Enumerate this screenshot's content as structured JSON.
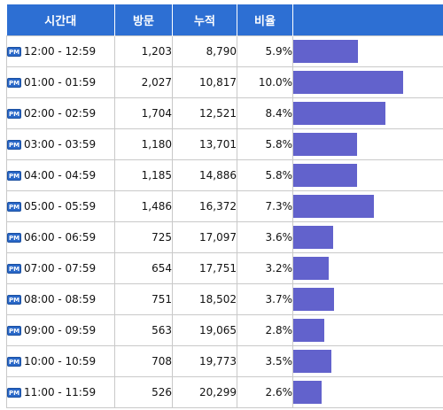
{
  "headers": [
    "시간대",
    "방문",
    "누적",
    "비율"
  ],
  "pm_badge": "PM",
  "bar_color": "#6262cc",
  "header_color": "#2d6fd3",
  "rows": [
    {
      "time": "12:00 - 12:59",
      "visits": "1,203",
      "cumulative": "8,790",
      "ratio": "5.9%",
      "ratio_value": 5.9
    },
    {
      "time": "01:00 - 01:59",
      "visits": "2,027",
      "cumulative": "10,817",
      "ratio": "10.0%",
      "ratio_value": 10.0
    },
    {
      "time": "02:00 - 02:59",
      "visits": "1,704",
      "cumulative": "12,521",
      "ratio": "8.4%",
      "ratio_value": 8.4
    },
    {
      "time": "03:00 - 03:59",
      "visits": "1,180",
      "cumulative": "13,701",
      "ratio": "5.8%",
      "ratio_value": 5.8
    },
    {
      "time": "04:00 - 04:59",
      "visits": "1,185",
      "cumulative": "14,886",
      "ratio": "5.8%",
      "ratio_value": 5.8
    },
    {
      "time": "05:00 - 05:59",
      "visits": "1,486",
      "cumulative": "16,372",
      "ratio": "7.3%",
      "ratio_value": 7.3
    },
    {
      "time": "06:00 - 06:59",
      "visits": "725",
      "cumulative": "17,097",
      "ratio": "3.6%",
      "ratio_value": 3.6
    },
    {
      "time": "07:00 - 07:59",
      "visits": "654",
      "cumulative": "17,751",
      "ratio": "3.2%",
      "ratio_value": 3.2
    },
    {
      "time": "08:00 - 08:59",
      "visits": "751",
      "cumulative": "18,502",
      "ratio": "3.7%",
      "ratio_value": 3.7
    },
    {
      "time": "09:00 - 09:59",
      "visits": "563",
      "cumulative": "19,065",
      "ratio": "2.8%",
      "ratio_value": 2.8
    },
    {
      "time": "10:00 - 10:59",
      "visits": "708",
      "cumulative": "19,773",
      "ratio": "3.5%",
      "ratio_value": 3.5
    },
    {
      "time": "11:00 - 11:59",
      "visits": "526",
      "cumulative": "20,299",
      "ratio": "2.6%",
      "ratio_value": 2.6
    }
  ]
}
